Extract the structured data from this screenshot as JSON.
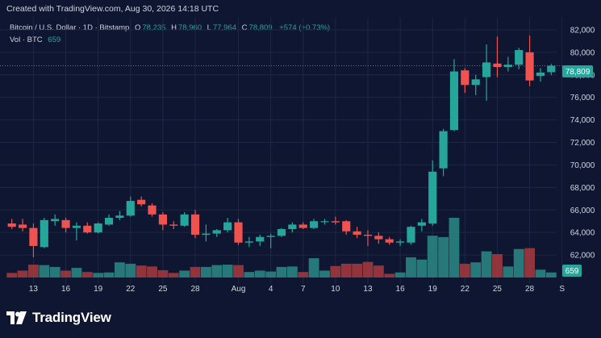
{
  "header": {
    "created_text": "Created with TradingView.com, Aug 30, 2026 14:18 UTC"
  },
  "legend": {
    "symbol": "Bitcoin / U.S. Dollar · 1D · Bitstamp",
    "open_label": "O",
    "open": "78,235",
    "high_label": "H",
    "high": "78,960",
    "low_label": "L",
    "low": "77,964",
    "close_label": "C",
    "close": "78,809",
    "change": "+574 (+0.73%)"
  },
  "volume_legend": {
    "label": "Vol · BTC",
    "value": "659"
  },
  "price_tag": "78,809",
  "volume_tag": "659",
  "footer": {
    "brand": "TradingView"
  },
  "colors": {
    "up": "#26a69a",
    "down": "#ef5350",
    "background": "#0f1631",
    "grid": "#1e2746"
  },
  "chart_data": {
    "type": "candlestick",
    "symbol": "BTC/USD",
    "interval": "1D",
    "ylim": [
      60000,
      83000
    ],
    "y_ticks": [
      "62,000",
      "64,000",
      "66,000",
      "68,000",
      "70,000",
      "72,000",
      "74,000",
      "76,000",
      "78,000",
      "80,000",
      "82,000"
    ],
    "x_ticks": [
      "13",
      "16",
      "19",
      "22",
      "25",
      "28",
      "Aug",
      "4",
      "7",
      "10",
      "13",
      "16",
      "19",
      "22",
      "25",
      "28",
      "S"
    ],
    "grid": true,
    "last_price_line": 78809,
    "candles": [
      {
        "date": "Jul 11",
        "open": 64800,
        "high": 65200,
        "low": 64300,
        "close": 64500,
        "volume": 1.0
      },
      {
        "date": "Jul 12",
        "open": 64700,
        "high": 65200,
        "low": 64100,
        "close": 64400,
        "volume": 1.5
      },
      {
        "date": "Jul 13",
        "open": 64400,
        "high": 64800,
        "low": 61800,
        "close": 62800,
        "volume": 2.8
      },
      {
        "date": "Jul 14",
        "open": 62700,
        "high": 65300,
        "low": 62600,
        "close": 65100,
        "volume": 2.7
      },
      {
        "date": "Jul 15",
        "open": 65000,
        "high": 65600,
        "low": 64600,
        "close": 65200,
        "volume": 2.3
      },
      {
        "date": "Jul 16",
        "open": 65100,
        "high": 65300,
        "low": 64000,
        "close": 64400,
        "volume": 1.5
      },
      {
        "date": "Jul 17",
        "open": 64400,
        "high": 64900,
        "low": 63300,
        "close": 64600,
        "volume": 2.1
      },
      {
        "date": "Jul 18",
        "open": 64600,
        "high": 64900,
        "low": 63900,
        "close": 64000,
        "volume": 1.2
      },
      {
        "date": "Jul 19",
        "open": 64000,
        "high": 64900,
        "low": 63900,
        "close": 64800,
        "volume": 1.0
      },
      {
        "date": "Jul 20",
        "open": 64700,
        "high": 65600,
        "low": 64600,
        "close": 65300,
        "volume": 1.1
      },
      {
        "date": "Jul 21",
        "open": 65300,
        "high": 65900,
        "low": 65100,
        "close": 65500,
        "volume": 3.3
      },
      {
        "date": "Jul 22",
        "open": 65500,
        "high": 67200,
        "low": 65400,
        "close": 66800,
        "volume": 3.0
      },
      {
        "date": "Jul 23",
        "open": 66900,
        "high": 67200,
        "low": 66300,
        "close": 66500,
        "volume": 2.6
      },
      {
        "date": "Jul 24",
        "open": 66400,
        "high": 66600,
        "low": 65400,
        "close": 65600,
        "volume": 2.4
      },
      {
        "date": "Jul 25",
        "open": 65600,
        "high": 65800,
        "low": 64200,
        "close": 64700,
        "volume": 1.6
      },
      {
        "date": "Jul 26",
        "open": 64700,
        "high": 65000,
        "low": 64300,
        "close": 64600,
        "volume": 1.0
      },
      {
        "date": "Jul 27",
        "open": 64600,
        "high": 65800,
        "low": 64500,
        "close": 65600,
        "volume": 1.5
      },
      {
        "date": "Jul 28",
        "open": 65600,
        "high": 66000,
        "low": 63500,
        "close": 63800,
        "volume": 2.3
      },
      {
        "date": "Jul 29",
        "open": 63800,
        "high": 64700,
        "low": 63200,
        "close": 63900,
        "volume": 2.3
      },
      {
        "date": "Jul 30",
        "open": 63900,
        "high": 64300,
        "low": 63600,
        "close": 64200,
        "volume": 2.7
      },
      {
        "date": "Jul 31",
        "open": 64200,
        "high": 65300,
        "low": 64000,
        "close": 64900,
        "volume": 2.8
      },
      {
        "date": "Aug 1",
        "open": 64900,
        "high": 65200,
        "low": 62900,
        "close": 63100,
        "volume": 2.7
      },
      {
        "date": "Aug 2",
        "open": 63100,
        "high": 63600,
        "low": 62700,
        "close": 63200,
        "volume": 1.2
      },
      {
        "date": "Aug 3",
        "open": 63200,
        "high": 63800,
        "low": 62800,
        "close": 63600,
        "volume": 1.5
      },
      {
        "date": "Aug 4",
        "open": 63600,
        "high": 63900,
        "low": 62600,
        "close": 63700,
        "volume": 1.3
      },
      {
        "date": "Aug 5",
        "open": 63700,
        "high": 64400,
        "low": 63600,
        "close": 64300,
        "volume": 2.3
      },
      {
        "date": "Aug 6",
        "open": 64300,
        "high": 64900,
        "low": 64000,
        "close": 64700,
        "volume": 2.4
      },
      {
        "date": "Aug 7",
        "open": 64700,
        "high": 64900,
        "low": 64300,
        "close": 64400,
        "volume": 1.2
      },
      {
        "date": "Aug 8",
        "open": 64400,
        "high": 65200,
        "low": 64300,
        "close": 65000,
        "volume": 4.2
      },
      {
        "date": "Aug 9",
        "open": 65000,
        "high": 65200,
        "low": 64700,
        "close": 65000,
        "volume": 1.5
      },
      {
        "date": "Aug 10",
        "open": 65000,
        "high": 65400,
        "low": 64700,
        "close": 64900,
        "volume": 2.5
      },
      {
        "date": "Aug 11",
        "open": 65000,
        "high": 65100,
        "low": 63800,
        "close": 64100,
        "volume": 3.0
      },
      {
        "date": "Aug 12",
        "open": 64100,
        "high": 64500,
        "low": 63500,
        "close": 63800,
        "volume": 3.0
      },
      {
        "date": "Aug 13",
        "open": 63800,
        "high": 64200,
        "low": 62800,
        "close": 63700,
        "volume": 3.4
      },
      {
        "date": "Aug 14",
        "open": 63700,
        "high": 64000,
        "low": 63000,
        "close": 63400,
        "volume": 2.6
      },
      {
        "date": "Aug 15",
        "open": 63400,
        "high": 63600,
        "low": 62900,
        "close": 63100,
        "volume": 0.8
      },
      {
        "date": "Aug 16",
        "open": 63100,
        "high": 63400,
        "low": 62800,
        "close": 63200,
        "volume": 1.1
      },
      {
        "date": "Aug 17",
        "open": 63100,
        "high": 64600,
        "low": 62900,
        "close": 64500,
        "volume": 4.4
      },
      {
        "date": "Aug 18",
        "open": 64600,
        "high": 65200,
        "low": 64100,
        "close": 64900,
        "volume": 3.9
      },
      {
        "date": "Aug 19",
        "open": 64800,
        "high": 70400,
        "low": 64600,
        "close": 69400,
        "volume": 9.1
      },
      {
        "date": "Aug 20",
        "open": 69700,
        "high": 73200,
        "low": 69000,
        "close": 73000,
        "volume": 8.8
      },
      {
        "date": "Aug 21",
        "open": 73100,
        "high": 79400,
        "low": 73000,
        "close": 78300,
        "volume": 13.0
      },
      {
        "date": "Aug 22",
        "open": 78400,
        "high": 78600,
        "low": 76400,
        "close": 77100,
        "volume": 3.0
      },
      {
        "date": "Aug 23",
        "open": 77100,
        "high": 78000,
        "low": 76200,
        "close": 77600,
        "volume": 3.3
      },
      {
        "date": "Aug 24",
        "open": 77800,
        "high": 80700,
        "low": 75700,
        "close": 79100,
        "volume": 5.7
      },
      {
        "date": "Aug 25",
        "open": 79000,
        "high": 81400,
        "low": 77800,
        "close": 78700,
        "volume": 5.1
      },
      {
        "date": "Aug 26",
        "open": 78700,
        "high": 79600,
        "low": 78300,
        "close": 78900,
        "volume": 2.4
      },
      {
        "date": "Aug 27",
        "open": 78900,
        "high": 80400,
        "low": 78500,
        "close": 80200,
        "volume": 6.2
      },
      {
        "date": "Aug 28",
        "open": 80000,
        "high": 81500,
        "low": 77000,
        "close": 77500,
        "volume": 6.4
      },
      {
        "date": "Aug 29",
        "open": 77900,
        "high": 78600,
        "low": 77400,
        "close": 78200,
        "volume": 1.7
      },
      {
        "date": "Aug 30",
        "open": 78235,
        "high": 78960,
        "low": 77964,
        "close": 78809,
        "volume": 1.1
      }
    ]
  }
}
